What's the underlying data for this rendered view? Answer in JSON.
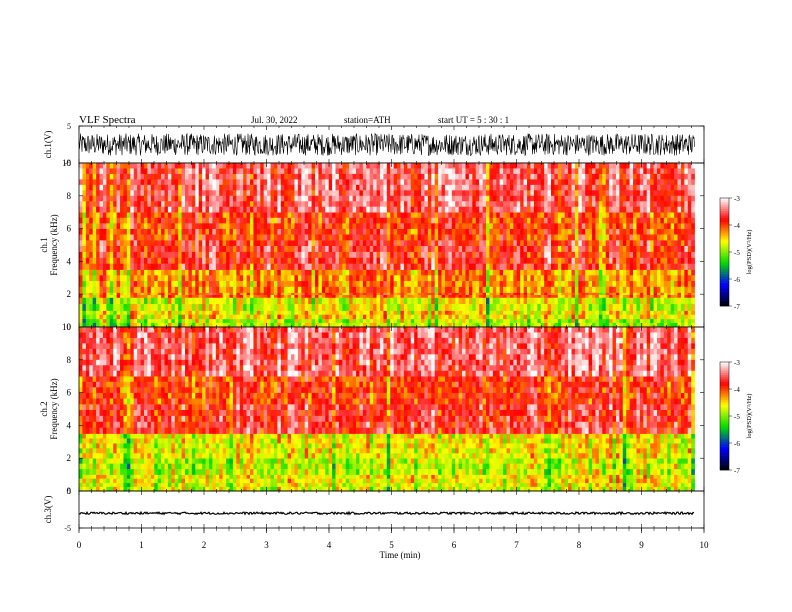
{
  "header": {
    "title": "VLF  Spectra",
    "date": "Jul.  30,  2022",
    "station": "station=ATH",
    "start": "start  UT  =    5  : 30 : 1"
  },
  "chart_data": [
    {
      "type": "line",
      "name": "ch1-waveform",
      "ylabel": "ch.1(V)",
      "ylim": [
        -5,
        5
      ],
      "yticks": [
        "5",
        "-5"
      ],
      "xlim": [
        0,
        10
      ],
      "amplitude_range": [
        -3,
        3
      ]
    },
    {
      "type": "heatmap",
      "name": "ch1-spectrogram",
      "ylabel": [
        "ch.1",
        "Frequency  (kHz)"
      ],
      "ylim": [
        0,
        10
      ],
      "yticks": [
        "0",
        "2",
        "4",
        "6",
        "8",
        "10"
      ],
      "xlim": [
        0,
        9.85
      ],
      "colorbar": {
        "label": "log(PSD)(V²/Hz)",
        "range": [
          -7,
          -3
        ],
        "ticks": [
          "-3",
          "-4",
          "-5",
          "-6",
          "-7"
        ],
        "colors": [
          "#000000",
          "#0000ff",
          "#00ff00",
          "#ffff00",
          "#ff0000",
          "#ffffff"
        ]
      },
      "bands_khz": [
        {
          "range": [
            0,
            0.5
          ],
          "level": -4.8
        },
        {
          "range": [
            0.5,
            1.0
          ],
          "level": -4.5
        },
        {
          "range": [
            1.0,
            1.8
          ],
          "level": -4.7
        },
        {
          "range": [
            1.8,
            2.1
          ],
          "level": -4.1
        },
        {
          "range": [
            2.1,
            3.5
          ],
          "level": -4.2
        },
        {
          "range": [
            3.5,
            5.3
          ],
          "level": -3.7
        },
        {
          "range": [
            5.3,
            7.0
          ],
          "level": -3.9
        },
        {
          "range": [
            7.0,
            10.0
          ],
          "level": -3.5
        }
      ]
    },
    {
      "type": "heatmap",
      "name": "ch2-spectrogram",
      "ylabel": [
        "ch.2",
        "Frequency  (kHz)"
      ],
      "ylim": [
        0,
        10
      ],
      "yticks": [
        "0",
        "2",
        "4",
        "6",
        "8",
        "10"
      ],
      "xlim": [
        0,
        9.85
      ],
      "colorbar": {
        "label": "log(PSD)(V²/Hz)",
        "range": [
          -7,
          -3
        ],
        "ticks": [
          "-3",
          "-4",
          "-5",
          "-6",
          "-7"
        ],
        "colors": [
          "#000000",
          "#0000ff",
          "#00ff00",
          "#ffff00",
          "#ff0000",
          "#ffffff"
        ]
      },
      "bands_khz": [
        {
          "range": [
            0,
            0.5
          ],
          "level": -4.7
        },
        {
          "range": [
            0.5,
            1.0
          ],
          "level": -4.6
        },
        {
          "range": [
            1.0,
            2.0
          ],
          "level": -4.8
        },
        {
          "range": [
            2.0,
            3.5
          ],
          "level": -4.6
        },
        {
          "range": [
            3.5,
            5.3
          ],
          "level": -3.7
        },
        {
          "range": [
            5.3,
            7.0
          ],
          "level": -3.9
        },
        {
          "range": [
            7.0,
            10.0
          ],
          "level": -3.5
        }
      ]
    },
    {
      "type": "line",
      "name": "ch3-waveform",
      "ylabel": "ch.3(V)",
      "ylim": [
        -5,
        5
      ],
      "yticks": [
        "5",
        "-5"
      ],
      "xlim": [
        0,
        10
      ],
      "amplitude_range": [
        -0.3,
        0.3
      ],
      "offset": -1
    }
  ],
  "x_axis": {
    "label": "Time  (min)",
    "range": [
      0,
      10
    ],
    "ticks": [
      "0",
      "1",
      "2",
      "3",
      "4",
      "5",
      "6",
      "7",
      "8",
      "9",
      "10"
    ]
  }
}
